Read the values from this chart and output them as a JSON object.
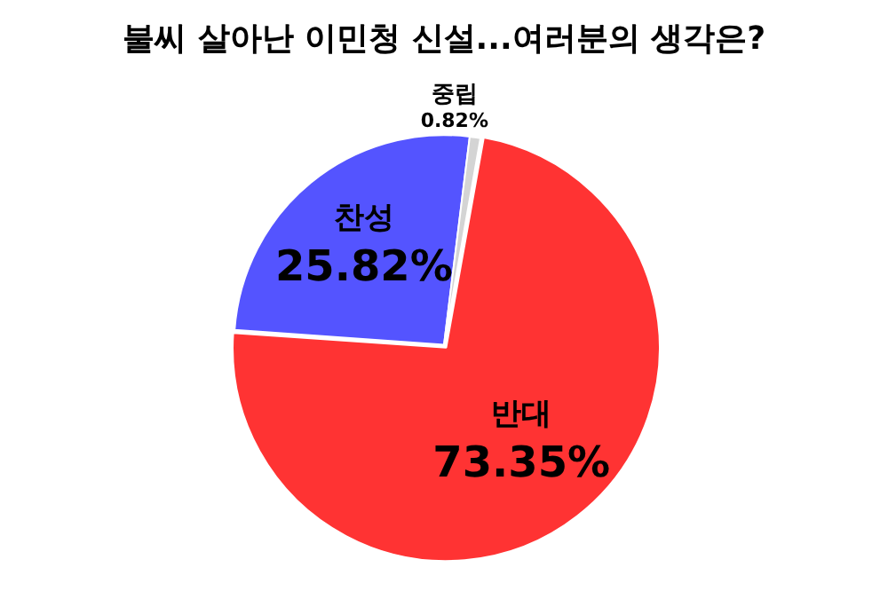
{
  "chart_data": {
    "type": "pie",
    "title": "불씨 살아난 이민청 신설...여러분의 생각은?",
    "categories": [
      "반대",
      "찬성",
      "중립"
    ],
    "values": [
      73.35,
      25.82,
      0.82
    ],
    "colors": [
      "#ff3333",
      "#5454ff",
      "#d4d4d4"
    ],
    "value_labels": [
      "73.35%",
      "25.82%",
      "0.82%"
    ],
    "legend": false
  }
}
